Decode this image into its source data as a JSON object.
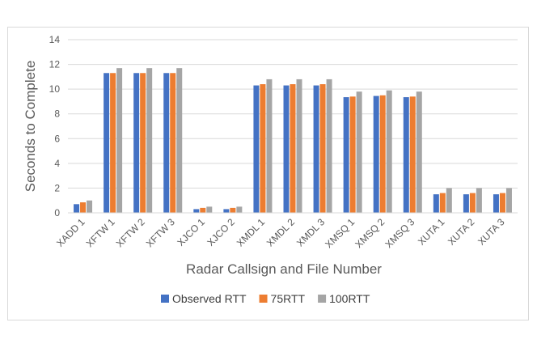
{
  "chart_data": {
    "type": "bar",
    "xlabel": "Radar Callsign and File Number",
    "ylabel": "Seconds to Complete",
    "ylim": [
      0,
      14
    ],
    "yticks": [
      0,
      2,
      4,
      6,
      8,
      10,
      12,
      14
    ],
    "grid": true,
    "legend": "bottom",
    "categories": [
      "XADD 1",
      "XFTW 1",
      "XFTW 2",
      "XFTW 3",
      "XJCO 1",
      "XJCO 2",
      "XMDL 1",
      "XMDL 2",
      "XMDL 3",
      "XMSQ 1",
      "XMSQ 2",
      "XMSQ 3",
      "XUTA 1",
      "XUTA 2",
      "XUTA 3"
    ],
    "series": [
      {
        "name": "Observed RTT",
        "color": "#4472c4",
        "values": [
          0.7,
          11.3,
          11.3,
          11.3,
          0.3,
          0.3,
          10.3,
          10.3,
          10.3,
          9.35,
          9.45,
          9.35,
          1.5,
          1.5,
          1.5
        ]
      },
      {
        "name": "75RTT",
        "color": "#ed7d31",
        "values": [
          0.85,
          11.3,
          11.3,
          11.3,
          0.4,
          0.4,
          10.4,
          10.4,
          10.4,
          9.4,
          9.5,
          9.4,
          1.6,
          1.6,
          1.6
        ]
      },
      {
        "name": "100RTT",
        "color": "#a5a5a5",
        "values": [
          1.0,
          11.7,
          11.7,
          11.7,
          0.5,
          0.5,
          10.8,
          10.8,
          10.8,
          9.8,
          9.9,
          9.8,
          2.0,
          2.0,
          2.0
        ]
      }
    ]
  }
}
